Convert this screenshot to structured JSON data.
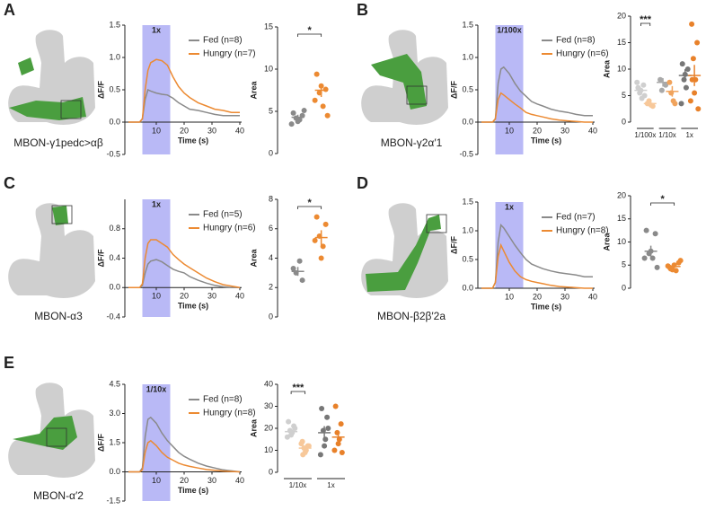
{
  "panels": [
    {
      "letter": "A",
      "neuron": "MBON-γ1pedc>αβ"
    },
    {
      "letter": "B",
      "neuron": "MBON-γ2α′1"
    },
    {
      "letter": "C",
      "neuron": "MBON-α3"
    },
    {
      "letter": "D",
      "neuron": "MBON-β2β′2a"
    },
    {
      "letter": "E",
      "neuron": "MBON-α′2"
    }
  ],
  "chart_data": [
    {
      "type": "line",
      "ylabel": "ΔF/F",
      "xlabel": "Time (s)",
      "xlim": [
        0,
        40
      ],
      "xticks": [
        10,
        20,
        30,
        40
      ],
      "ylim": [
        -0.5,
        1.5
      ],
      "yticks": [
        -0.5,
        {
          "value": 0,
          "label": "0.0"
        },
        0.5,
        {
          "value": 1,
          "label": "1.0"
        },
        1.5
      ],
      "stimulus": {
        "label": "1x",
        "start": 5,
        "end": 15
      },
      "x": [
        0,
        2,
        4,
        5,
        6,
        7,
        8,
        10,
        12,
        14,
        16,
        18,
        20,
        22,
        25,
        28,
        31,
        34,
        37,
        40
      ],
      "series": [
        {
          "name": "Fed (n=8)",
          "color": "#8a8a8a",
          "values": [
            0,
            0,
            0,
            0.05,
            0.35,
            0.5,
            0.48,
            0.45,
            0.43,
            0.42,
            0.37,
            0.3,
            0.25,
            0.2,
            0.18,
            0.15,
            0.12,
            0.1,
            0.1,
            0.1
          ]
        },
        {
          "name": "Hungry (n=7)",
          "color": "#ec8a32",
          "values": [
            0,
            0,
            0,
            0.05,
            0.5,
            0.8,
            0.92,
            0.97,
            0.95,
            0.88,
            0.7,
            0.55,
            0.45,
            0.38,
            0.3,
            0.25,
            0.2,
            0.18,
            0.15,
            0.15
          ]
        }
      ]
    },
    {
      "type": "dot",
      "ylabel": "Area",
      "ylim": [
        0,
        15
      ],
      "yticks": [
        0,
        5,
        10,
        15
      ],
      "groups": [
        {
          "label": null,
          "significance": "*",
          "series": [
            {
              "color": "#8a8a8a",
              "values": [
                4.8,
                4.5,
                4.2,
                4.0,
                3.8,
                3.5,
                5.1
              ],
              "mean": 4.3,
              "sem": 0.3
            },
            {
              "color": "#ec8a32",
              "values": [
                9.4,
                7.6,
                7.2,
                5.6,
                8.0,
                6.3,
                4.5
              ],
              "mean": 7.5,
              "sem": 0.8
            }
          ]
        }
      ]
    },
    {
      "type": "line",
      "ylabel": "ΔF/F",
      "xlabel": "Time (s)",
      "xlim": [
        0,
        40
      ],
      "xticks": [
        10,
        20,
        30,
        40
      ],
      "ylim": [
        -0.5,
        1.5
      ],
      "yticks": [
        -0.5,
        {
          "value": 0,
          "label": "0.0"
        },
        0.5,
        {
          "value": 1,
          "label": "1.0"
        },
        1.5
      ],
      "stimulus": {
        "label": "1/100x",
        "start": 5,
        "end": 15
      },
      "x": [
        0,
        2,
        4,
        5,
        6,
        7,
        8,
        10,
        12,
        14,
        16,
        18,
        20,
        22,
        25,
        28,
        31,
        34,
        37,
        40
      ],
      "series": [
        {
          "name": "Fed (n=8)",
          "color": "#8a8a8a",
          "values": [
            0,
            0,
            0,
            0.05,
            0.6,
            0.82,
            0.85,
            0.75,
            0.6,
            0.48,
            0.4,
            0.32,
            0.28,
            0.25,
            0.2,
            0.17,
            0.15,
            0.12,
            0.1,
            0.1
          ]
        },
        {
          "name": "Hungry (n=6)",
          "color": "#ec8a32",
          "values": [
            0,
            0,
            0,
            0.05,
            0.35,
            0.45,
            0.42,
            0.35,
            0.28,
            0.22,
            0.15,
            0.12,
            0.1,
            0.08,
            0.05,
            0.03,
            0.02,
            0.01,
            0,
            0
          ]
        }
      ]
    },
    {
      "type": "dot",
      "ylabel": "Area",
      "ylim": [
        0,
        20
      ],
      "yticks": [
        0,
        5,
        10,
        15,
        20
      ],
      "groups": [
        {
          "label": "1/100x",
          "significance": "***",
          "series": [
            {
              "color": "#cfcfcf",
              "values": [
                6.5,
                7.0,
                5.5,
                4.5,
                6.0,
                7.5,
                5.0
              ],
              "mean": 6,
              "sem": 0.5
            },
            {
              "color": "#f7c89a",
              "values": [
                3.5,
                3.0,
                4.0,
                3.2
              ],
              "mean": 3.5,
              "sem": 0.3
            }
          ]
        },
        {
          "label": "1/10x",
          "significance": null,
          "series": [
            {
              "color": "#a9a9a9",
              "values": [
                8.0,
                7.0,
                6.0
              ],
              "mean": 7.5,
              "sem": 0.8
            },
            {
              "color": "#f0a35c",
              "values": [
                7.5,
                3.5,
                5.5,
                4.0
              ],
              "mean": 5.8,
              "sem": 1
            }
          ]
        },
        {
          "label": "1x",
          "significance": null,
          "series": [
            {
              "color": "#777777",
              "values": [
                11,
                10,
                8,
                6.5,
                9,
                3.5
              ],
              "mean": 8.8,
              "sem": 1.2
            },
            {
              "color": "#e8812a",
              "values": [
                18.5,
                15,
                12,
                8,
                5.5,
                4,
                2.5,
                8
              ],
              "mean": 8.8,
              "sem": 2
            }
          ]
        }
      ]
    },
    {
      "type": "line",
      "ylabel": "ΔF/F",
      "xlabel": "Time (s)",
      "xlim": [
        0,
        40
      ],
      "xticks": [
        10,
        20,
        30,
        40
      ],
      "ylim": [
        -0.4,
        1.2
      ],
      "yticks": [
        -0.4,
        {
          "value": 0,
          "label": "0.0"
        },
        0.4,
        0.8
      ],
      "stimulus": {
        "label": "1x",
        "start": 5,
        "end": 15
      },
      "x": [
        0,
        2,
        4,
        5,
        6,
        7,
        8,
        10,
        12,
        14,
        16,
        18,
        20,
        22,
        25,
        28,
        31,
        34,
        37,
        40
      ],
      "series": [
        {
          "name": "Fed (n=5)",
          "color": "#8a8a8a",
          "values": [
            0,
            0,
            0,
            0.03,
            0.2,
            0.32,
            0.36,
            0.38,
            0.35,
            0.3,
            0.25,
            0.22,
            0.2,
            0.15,
            0.1,
            0.06,
            0.03,
            0.01,
            0,
            0
          ]
        },
        {
          "name": "Hungry (n=6)",
          "color": "#ec8a32",
          "values": [
            0,
            0,
            0,
            0.05,
            0.4,
            0.6,
            0.65,
            0.65,
            0.6,
            0.55,
            0.45,
            0.38,
            0.32,
            0.27,
            0.2,
            0.13,
            0.08,
            0.04,
            0.02,
            0
          ]
        }
      ]
    },
    {
      "type": "dot",
      "ylabel": "Area",
      "ylim": [
        0,
        8
      ],
      "yticks": [
        0,
        2,
        4,
        6,
        8
      ],
      "groups": [
        {
          "label": null,
          "significance": "*",
          "series": [
            {
              "color": "#8a8a8a",
              "values": [
                3.3,
                2.5,
                3.0,
                3.8
              ],
              "mean": 3.1,
              "sem": 0.3
            },
            {
              "color": "#ec8a32",
              "values": [
                6.8,
                6.3,
                5.5,
                4.8,
                4.0,
                5.2
              ],
              "mean": 5.4,
              "sem": 0.5
            }
          ]
        }
      ]
    },
    {
      "type": "line",
      "ylabel": "ΔF/F",
      "xlabel": "Time (s)",
      "xlim": [
        0,
        40
      ],
      "xticks": [
        10,
        20,
        30,
        40
      ],
      "ylim": [
        0,
        1.5
      ],
      "yticks": [
        {
          "value": 0,
          "label": "0.0"
        },
        0.5,
        {
          "value": 1,
          "label": "1.0"
        },
        1.5
      ],
      "stimulus": {
        "label": "1x",
        "start": 5,
        "end": 15
      },
      "x": [
        0,
        2,
        4,
        5,
        6,
        7,
        8,
        10,
        12,
        14,
        16,
        18,
        20,
        22,
        25,
        28,
        31,
        34,
        37,
        40
      ],
      "series": [
        {
          "name": "Fed (n=7)",
          "color": "#8a8a8a",
          "values": [
            0,
            0,
            0,
            0.1,
            0.8,
            1.1,
            1.05,
            0.9,
            0.75,
            0.62,
            0.5,
            0.42,
            0.38,
            0.34,
            0.3,
            0.27,
            0.25,
            0.23,
            0.2,
            0.2
          ]
        },
        {
          "name": "Hungry (n=8)",
          "color": "#ec8a32",
          "values": [
            0,
            0,
            0,
            0.1,
            0.55,
            0.75,
            0.65,
            0.45,
            0.3,
            0.2,
            0.15,
            0.12,
            0.1,
            0.08,
            0.05,
            0.03,
            0.02,
            0.01,
            0,
            0
          ]
        }
      ]
    },
    {
      "type": "dot",
      "ylabel": "Area",
      "ylim": [
        0,
        20
      ],
      "yticks": [
        0,
        5,
        10,
        15,
        20
      ],
      "groups": [
        {
          "label": null,
          "significance": "*",
          "series": [
            {
              "color": "#8a8a8a",
              "values": [
                12.5,
                11.8,
                7.5,
                6.5,
                8,
                6.5,
                4.5
              ],
              "mean": 8,
              "sem": 1.2
            },
            {
              "color": "#ec8a32",
              "values": [
                4.5,
                5.5,
                4.0,
                3.8,
                5.0,
                4.8,
                6.0,
                4.2
              ],
              "mean": 4.7,
              "sem": 0.3
            }
          ]
        }
      ]
    },
    {
      "type": "line",
      "ylabel": "ΔF/F",
      "xlabel": "Time (s)",
      "xlim": [
        0,
        40
      ],
      "xticks": [
        10,
        20,
        30,
        40
      ],
      "ylim": [
        -1.5,
        4.5
      ],
      "yticks": [
        -1.5,
        {
          "value": 0,
          "label": "0.0"
        },
        1.5,
        {
          "value": 3,
          "label": "3.0"
        },
        4.5
      ],
      "stimulus": {
        "label": "1/10x",
        "start": 5,
        "end": 15
      },
      "x": [
        0,
        2,
        4,
        5,
        6,
        7,
        8,
        10,
        12,
        14,
        16,
        18,
        20,
        22,
        25,
        28,
        31,
        34,
        37,
        40
      ],
      "series": [
        {
          "name": "Fed (n=8)",
          "color": "#8a8a8a",
          "values": [
            0,
            0,
            0,
            0.2,
            1.8,
            2.7,
            2.8,
            2.5,
            2.0,
            1.6,
            1.3,
            1.0,
            0.8,
            0.65,
            0.45,
            0.3,
            0.2,
            0.1,
            0.05,
            0
          ]
        },
        {
          "name": "Hungry (n=8)",
          "color": "#ec8a32",
          "values": [
            0,
            0,
            0,
            0.1,
            1.0,
            1.5,
            1.6,
            1.35,
            1.0,
            0.75,
            0.6,
            0.45,
            0.35,
            0.28,
            0.2,
            0.12,
            0.08,
            0.04,
            0.02,
            0
          ]
        }
      ]
    },
    {
      "type": "dot",
      "ylabel": "Area",
      "ylim": [
        0,
        40
      ],
      "yticks": [
        0,
        10,
        20,
        30,
        40
      ],
      "groups": [
        {
          "label": "1/10x",
          "significance": "***",
          "series": [
            {
              "color": "#cfcfcf",
              "values": [
                23,
                21,
                19,
                18,
                17,
                16,
                20
              ],
              "mean": 18.5,
              "sem": 1
            },
            {
              "color": "#f7c89a",
              "values": [
                14,
                12,
                11,
                10,
                9,
                13,
                12,
                8
              ],
              "mean": 11,
              "sem": 0.8
            }
          ]
        },
        {
          "label": "1x",
          "significance": null,
          "series": [
            {
              "color": "#777777",
              "values": [
                29,
                25,
                19,
                15,
                12,
                8,
                20
              ],
              "mean": 18,
              "sem": 3
            },
            {
              "color": "#e8812a",
              "values": [
                30,
                22,
                18,
                15,
                13,
                10,
                9
              ],
              "mean": 16,
              "sem": 2.5
            }
          ]
        }
      ]
    }
  ]
}
